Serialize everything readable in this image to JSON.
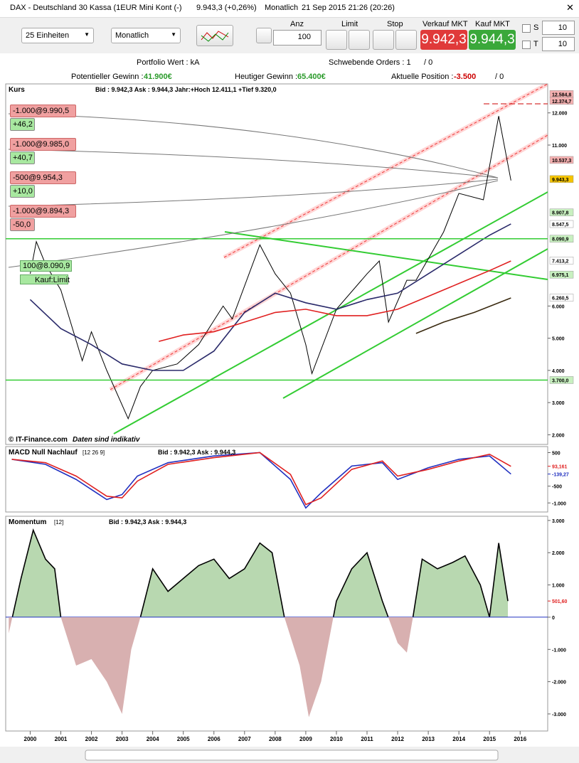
{
  "window": {
    "title": "DAX - Deutschland 30 Kassa (1EUR Mini Kont (-)",
    "quote": "9.943,3 (+0,26%)",
    "period": "Monatlich",
    "datetime": "21 Sep 2015 21:26 (20:26)"
  },
  "toolbar": {
    "units": "25 Einheiten",
    "interval": "Monatlich",
    "anz_label": "Anz",
    "anz_value": "100",
    "limit_label": "Limit",
    "stop_label": "Stop",
    "sell_label": "Verkauf MKT",
    "sell_price": "9.942,3",
    "buy_label": "Kauf MKT",
    "buy_price": "9.944,3",
    "s_label": "S",
    "s_value": "10",
    "t_label": "T",
    "t_value": "10"
  },
  "info": {
    "portfolio": "Portfolio Wert : kA",
    "pending": "Schwebende Orders : 1",
    "pending_alt": "/ 0",
    "potential_label": "Potentieller Gewinn :",
    "potential": "41.900€",
    "today_label": "Heutiger Gewinn :",
    "today": "65.400€",
    "position_label": "Aktuelle Position :",
    "position": "-3.500",
    "position_alt": "/ 0"
  },
  "price_chart": {
    "type": "line",
    "title": "Kurs",
    "quote": "Bid : 9.942,3 Ask : 9.944,3 Jahr:+Hoch 12.411,1 +Tief 9.320,0",
    "credit": "© IT-Finance.com",
    "note": "Daten sind indikativ",
    "xlim": [
      1999.2,
      2016.9
    ],
    "xticks": [
      2000,
      2001,
      2002,
      2003,
      2004,
      2005,
      2006,
      2007,
      2008,
      2009,
      2010,
      2011,
      2012,
      2013,
      2014,
      2015,
      2016
    ],
    "ylim": [
      1700,
      12900
    ],
    "yticks": [
      {
        "value": 12000,
        "label": "12.000"
      },
      {
        "value": 11000,
        "label": "11.000"
      },
      {
        "value": 6000,
        "label": "6.000"
      },
      {
        "value": 5000,
        "label": "5.000"
      },
      {
        "value": 4000,
        "label": "4.000"
      },
      {
        "value": 3000,
        "label": "3.000"
      },
      {
        "value": 2000,
        "label": "2.000"
      }
    ],
    "price_tags": [
      {
        "value": 12584.8,
        "label": "12.584,8",
        "color": "#f4b0b0"
      },
      {
        "value": 12374.7,
        "label": "12.374,7",
        "color": "#f4b0b0"
      },
      {
        "value": 10537.3,
        "label": "10.537,3",
        "color": "#f4b0b0"
      },
      {
        "value": 9943.3,
        "label": "9.943,3",
        "color": "#f5c400"
      },
      {
        "value": 8907.8,
        "label": "8.907,8",
        "color": "#c8f0c0"
      },
      {
        "value": 8547.5,
        "label": "8.547,5",
        "color": "#ffffff"
      },
      {
        "value": 8090.9,
        "label": "8.090,9",
        "color": "#c8f0c0"
      },
      {
        "value": 7413.2,
        "label": "7.413,2",
        "color": "#ffffff"
      },
      {
        "value": 6975.1,
        "label": "6.975,1",
        "color": "#c8f0c0"
      },
      {
        "value": 6260.5,
        "label": "6.260,5",
        "color": "#ffffff"
      },
      {
        "value": 3700,
        "label": "3.700,0",
        "color": "#c8f0c0"
      }
    ],
    "orders": [
      {
        "label": "-1.000@9.990,5",
        "pnl": "+46,2"
      },
      {
        "label": "-1.000@9.985,0",
        "pnl": "+40,7"
      },
      {
        "label": "-500@9.954,3",
        "pnl": "+10,0"
      },
      {
        "label": "-1.000@9.894,3",
        "pnl": "-50,0"
      }
    ],
    "limit_order": {
      "label": "100@8.090,9",
      "type": "Kauf:Limit"
    },
    "series": [
      {
        "color": "#000000",
        "x": [
          2000.0,
          2000.2,
          2000.5,
          2001.0,
          2001.7,
          2002.0,
          2002.5,
          2003.2,
          2003.6,
          2004.0,
          2004.8,
          2005.5,
          2006.3,
          2006.6,
          2007.5,
          2008.0,
          2008.5,
          2009.0,
          2009.2,
          2010.0,
          2011.0,
          2011.4,
          2011.7,
          2012.3,
          2012.6,
          2013.5,
          2014.0,
          2014.8,
          2015.3,
          2015.7
        ],
        "values": [
          7000,
          8000,
          7300,
          6500,
          4300,
          5200,
          4000,
          2500,
          3500,
          4000,
          4200,
          4800,
          6000,
          5600,
          7900,
          7000,
          6400,
          4800,
          3900,
          5900,
          7000,
          7400,
          5500,
          6800,
          6800,
          8300,
          9500,
          9300,
          11900,
          9900
        ]
      },
      {
        "color": "#2a2a6a",
        "x": [
          2000.0,
          2001.0,
          2002.0,
          2003.0,
          2004.0,
          2005.0,
          2006.0,
          2007.0,
          2008.0,
          2009.0,
          2010.0,
          2011.0,
          2012.0,
          2013.0,
          2014.0,
          2015.0,
          2015.7
        ],
        "values": [
          6200,
          5300,
          4800,
          4200,
          4000,
          4000,
          4600,
          5800,
          6400,
          6100,
          5900,
          6200,
          6400,
          7000,
          7600,
          8200,
          8550
        ]
      },
      {
        "color": "#e02020",
        "x": [
          2004.2,
          2005.0,
          2006.0,
          2007.0,
          2008.0,
          2009.0,
          2010.0,
          2011.0,
          2012.0,
          2013.0,
          2014.0,
          2015.0,
          2015.7
        ],
        "values": [
          4900,
          5100,
          5200,
          5500,
          5800,
          5900,
          5700,
          5700,
          5900,
          6300,
          6700,
          7100,
          7400
        ]
      },
      {
        "color": "#3a2a10",
        "x": [
          2012.6,
          2013.5,
          2014.5,
          2015.7
        ],
        "values": [
          5150,
          5500,
          5800,
          6250
        ]
      }
    ]
  },
  "macd_chart": {
    "type": "line",
    "title": "MACD Null Nachlauf",
    "params": "[12 26 9]",
    "quote": "Bid : 9.942,3 Ask : 9.944,3",
    "ylim": [
      -1270,
      680
    ],
    "yticks": [
      {
        "value": 500,
        "label": "500"
      },
      {
        "value": -500,
        "label": "-500"
      },
      {
        "value": -1000,
        "label": "-1.000"
      }
    ],
    "tags": [
      {
        "value": 93.161,
        "label": "93,161",
        "color": "#e02020"
      },
      {
        "value": -139.27,
        "label": "-139,27",
        "color": "#2030c0"
      }
    ],
    "series": [
      {
        "color": "#2030c0",
        "x": [
          1999.4,
          2000.5,
          2001.5,
          2002.5,
          2003.0,
          2003.5,
          2004.5,
          2006.0,
          2007.5,
          2008.5,
          2009.0,
          2009.5,
          2010.5,
          2011.5,
          2012.0,
          2013.0,
          2014.0,
          2015.0,
          2015.7
        ],
        "values": [
          300,
          150,
          -300,
          -900,
          -750,
          -200,
          200,
          400,
          500,
          -300,
          -1150,
          -700,
          100,
          200,
          -300,
          50,
          300,
          400,
          -140
        ]
      },
      {
        "color": "#e02020",
        "x": [
          1999.4,
          2000.5,
          2001.5,
          2002.5,
          2003.0,
          2003.5,
          2004.5,
          2006.0,
          2007.5,
          2008.5,
          2009.0,
          2009.5,
          2010.5,
          2011.5,
          2012.0,
          2013.0,
          2014.0,
          2015.0,
          2015.7
        ],
        "values": [
          300,
          200,
          -200,
          -800,
          -850,
          -350,
          150,
          350,
          500,
          -150,
          -1050,
          -850,
          0,
          250,
          -200,
          0,
          250,
          450,
          90
        ]
      }
    ]
  },
  "momentum_chart": {
    "type": "area",
    "title": "Momentum",
    "params": "[12]",
    "quote": "Bid : 9.942,3 Ask : 9.944,3",
    "ylim": [
      -3530,
      3130
    ],
    "yticks": [
      {
        "value": 3000,
        "label": "3.000"
      },
      {
        "value": 2000,
        "label": "2.000"
      },
      {
        "value": 1000,
        "label": "1.000"
      },
      {
        "value": 0,
        "label": "0"
      },
      {
        "value": -1000,
        "label": "-1.000"
      },
      {
        "value": -2000,
        "label": "-2.000"
      },
      {
        "value": -3000,
        "label": "-3.000"
      }
    ],
    "tags": [
      {
        "value": 501.6,
        "label": "501,60",
        "color": "#e02020"
      }
    ],
    "series": [
      {
        "color": "#000000",
        "x": [
          1999.3,
          1999.7,
          2000.1,
          2000.5,
          2000.8,
          2001.0,
          2001.5,
          2002.0,
          2002.5,
          2003.0,
          2003.3,
          2003.6,
          2004.0,
          2004.5,
          2005.0,
          2005.5,
          2006.0,
          2006.5,
          2007.0,
          2007.5,
          2007.9,
          2008.3,
          2008.8,
          2009.1,
          2009.5,
          2010.0,
          2010.5,
          2011.0,
          2011.5,
          2012.0,
          2012.3,
          2012.5,
          2012.8,
          2013.3,
          2013.8,
          2014.2,
          2014.7,
          2015.0,
          2015.3,
          2015.6
        ],
        "values": [
          -500,
          1200,
          2700,
          1800,
          1500,
          0,
          -1500,
          -1300,
          -2000,
          -3000,
          -1000,
          0,
          1500,
          800,
          1200,
          1600,
          1800,
          1200,
          1500,
          2300,
          2000,
          0,
          -1500,
          -3100,
          -2000,
          500,
          1500,
          2000,
          500,
          -800,
          -1100,
          0,
          1800,
          1500,
          1700,
          1900,
          1000,
          0,
          2300,
          500
        ]
      }
    ]
  }
}
